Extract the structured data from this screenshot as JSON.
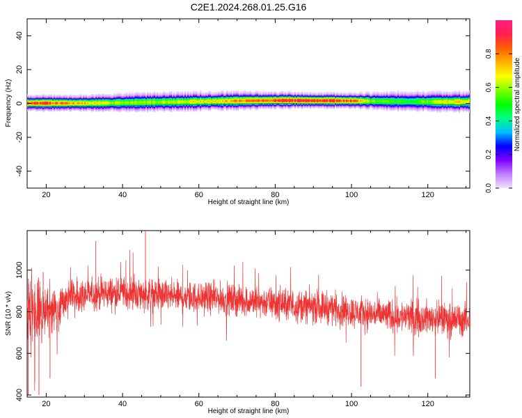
{
  "figure": {
    "title": "C2E1.2024.268.01.25.G16"
  },
  "chart_data": [
    {
      "type": "heatmap",
      "title": "",
      "xlabel": "Height of straight line (km)",
      "ylabel": "Frequency (Hz)",
      "xlim": [
        15,
        131
      ],
      "ylim": [
        -50,
        50
      ],
      "x_ticks": [
        20,
        40,
        60,
        80,
        100,
        120
      ],
      "y_ticks": [
        -40,
        -20,
        0,
        20,
        40
      ],
      "colorbar": {
        "label": "Normalized spectral amplitude",
        "range": [
          0,
          1
        ],
        "ticks": [
          0.0,
          0.2,
          0.4,
          0.6,
          0.8
        ],
        "colormap": [
          "#f0e0ff",
          "#c080ff",
          "#8000ff",
          "#0000ff",
          "#00c0ff",
          "#00ff80",
          "#00ff00",
          "#80ff00",
          "#ffff00",
          "#ffb000",
          "#ff6000",
          "#ff2050",
          "#ff2080"
        ]
      },
      "ridge": {
        "x": [
          15,
          20,
          25,
          30,
          35,
          40,
          45,
          50,
          55,
          60,
          65,
          70,
          75,
          80,
          85,
          90,
          95,
          100,
          105,
          110,
          115,
          120,
          125,
          131
        ],
        "peak_freq": [
          0.5,
          0.5,
          0.5,
          0.5,
          0.6,
          0.8,
          1.0,
          1.2,
          1.3,
          1.5,
          1.7,
          1.9,
          2.0,
          2.1,
          2.1,
          2.0,
          2.0,
          1.9,
          1.8,
          1.6,
          1.5,
          1.4,
          1.3,
          1.3
        ],
        "peak_amplitude": [
          0.85,
          0.9,
          0.8,
          0.75,
          0.65,
          0.6,
          0.6,
          0.62,
          0.65,
          0.68,
          0.7,
          0.78,
          0.85,
          0.9,
          0.92,
          0.92,
          0.9,
          0.85,
          0.6,
          0.55,
          0.5,
          0.6,
          0.7,
          0.7
        ],
        "half_width_hz": [
          3.5,
          3.5,
          3.5,
          3.5,
          3.8,
          4.0,
          4.2,
          4.3,
          4.3,
          4.2,
          4.1,
          4.0,
          3.8,
          3.5,
          3.5,
          3.4,
          3.4,
          3.5,
          3.8,
          4.2,
          4.5,
          4.5,
          4.5,
          4.5
        ]
      }
    },
    {
      "type": "line",
      "title": "",
      "xlabel": "Height of straight line (km)",
      "ylabel": "SNR (10 * v/v)",
      "xlim": [
        15,
        131
      ],
      "ylim": [
        390,
        1190
      ],
      "x_ticks": [
        20,
        40,
        60,
        80,
        100,
        120
      ],
      "y_ticks": [
        400,
        600,
        800,
        1000
      ],
      "series": [
        {
          "color": "#ee3333",
          "envelope": {
            "x": [
              15,
              17,
              19,
              21,
              23,
              25,
              27,
              30,
              35,
              40,
              45,
              50,
              55,
              60,
              65,
              70,
              75,
              80,
              85,
              90,
              95,
              100,
              105,
              110,
              115,
              120,
              125,
              131
            ],
            "mean": [
              780,
              800,
              800,
              800,
              810,
              850,
              870,
              880,
              890,
              890,
              885,
              880,
              870,
              870,
              865,
              855,
              850,
              840,
              830,
              825,
              820,
              800,
              790,
              780,
              775,
              770,
              765,
              760
            ],
            "spread": [
              230,
              200,
              170,
              150,
              140,
              120,
              110,
              100,
              100,
              100,
              100,
              95,
              95,
              95,
              95,
              95,
              95,
              100,
              100,
              100,
              100,
              100,
              100,
              100,
              100,
              100,
              100,
              100
            ]
          },
          "extremes": [
            {
              "x": 15.3,
              "y": 400
            },
            {
              "x": 16.2,
              "y": 1010
            },
            {
              "x": 17.0,
              "y": 460
            },
            {
              "x": 18.1,
              "y": 400
            },
            {
              "x": 19.2,
              "y": 990
            },
            {
              "x": 21.0,
              "y": 480
            },
            {
              "x": 46.0,
              "y": 1190
            },
            {
              "x": 33.0,
              "y": 1140
            },
            {
              "x": 102.5,
              "y": 440
            },
            {
              "x": 122.0,
              "y": 480
            }
          ]
        }
      ]
    }
  ]
}
